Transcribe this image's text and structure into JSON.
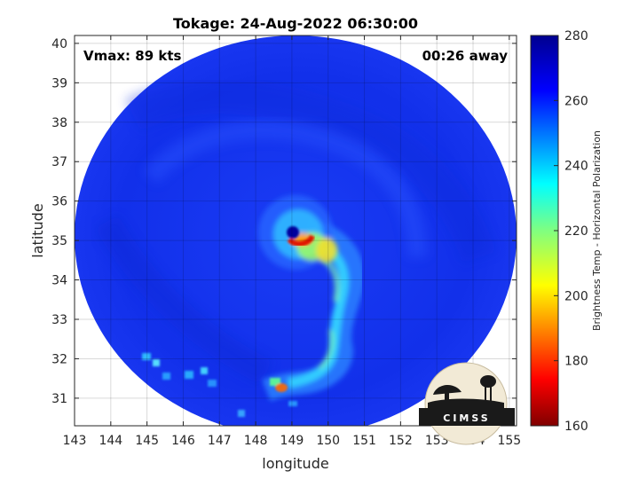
{
  "title": "Tokage: 24-Aug-2022 06:30:00",
  "vmax_label": "Vmax: 89 kts",
  "time_label": "00:26 away",
  "logo_text": "CIMSS",
  "chart_data": {
    "type": "heatmap",
    "xlabel": "longitude",
    "ylabel": "latitude",
    "xlim": [
      143,
      155.2
    ],
    "ylim": [
      30.3,
      40.2
    ],
    "xticks": [
      "143",
      "144",
      "145",
      "146",
      "147",
      "148",
      "149",
      "150",
      "151",
      "152",
      "153",
      "154",
      "155"
    ],
    "yticks": [
      "31",
      "32",
      "33",
      "34",
      "35",
      "36",
      "37",
      "38",
      "39",
      "40"
    ],
    "grid": true,
    "storm_center": {
      "lon": 149.1,
      "lat": 35.2
    },
    "colorbar": {
      "label": "Brightness Temp - Horizontal Polarization",
      "range": [
        160,
        280
      ],
      "ticks": [
        "160",
        "180",
        "200",
        "220",
        "240",
        "260",
        "280"
      ],
      "colormap": "jet"
    }
  },
  "colors": {
    "background_field": "#1437f0",
    "eye": "#00009e",
    "eyewall": "#d81a00"
  }
}
